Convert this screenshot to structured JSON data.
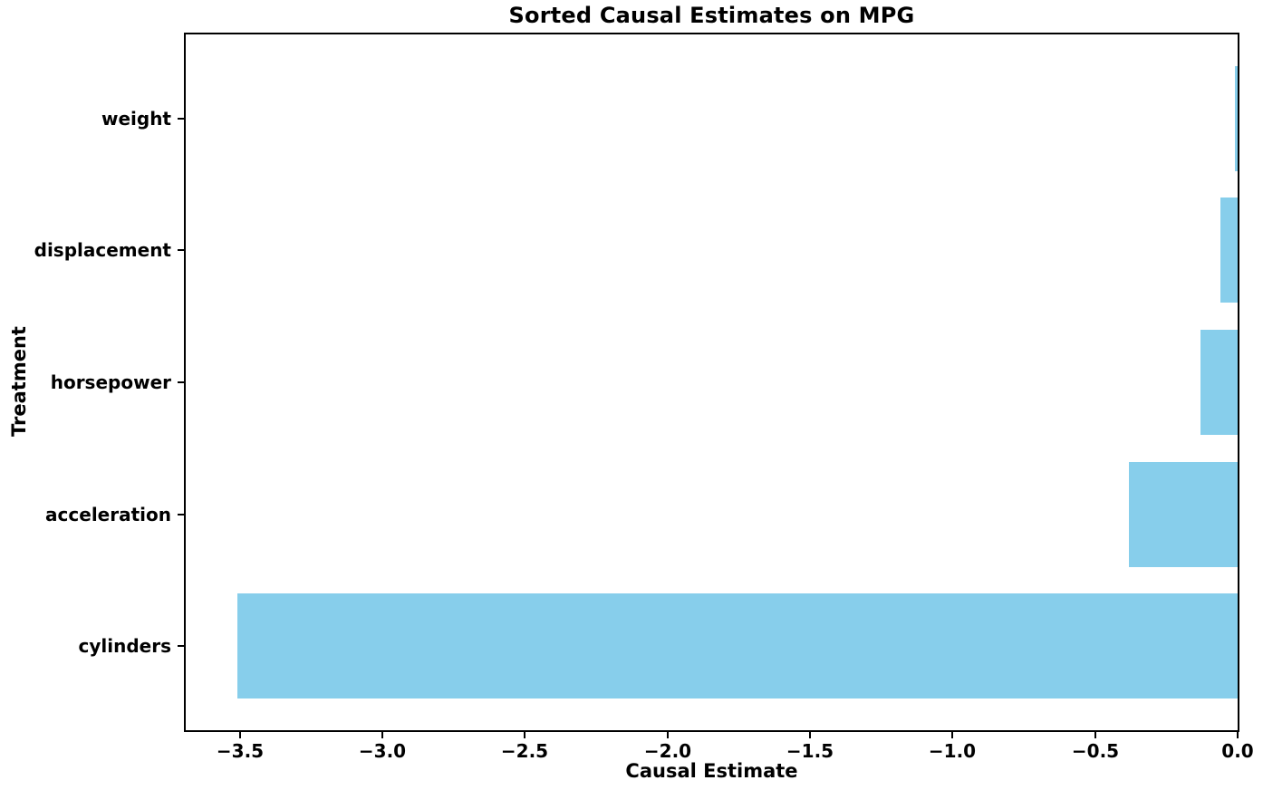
{
  "title": "Sorted Causal Estimates on MPG",
  "chart_data": {
    "type": "bar",
    "orientation": "horizontal",
    "title": "Sorted Causal Estimates on MPG",
    "xlabel": "Causal Estimate",
    "ylabel": "Treatment",
    "categories": [
      "weight",
      "displacement",
      "horsepower",
      "acceleration",
      "cylinders"
    ],
    "values": [
      -0.01,
      -0.06,
      -0.13,
      -0.38,
      -3.51
    ],
    "xlim": [
      -3.69,
      0
    ],
    "x_ticks": [
      -3.5,
      -3.0,
      -2.5,
      -2.0,
      -1.5,
      -1.0,
      -0.5,
      0.0
    ],
    "x_tick_labels": [
      "−3.5",
      "−3.0",
      "−2.5",
      "−2.0",
      "−1.5",
      "−1.0",
      "−0.5",
      "0.0"
    ],
    "bar_color": "#87CEEB",
    "bar_thickness_ratio": 0.8,
    "outer_pad_ratio": 0.6375,
    "grid": false,
    "legend": null
  }
}
